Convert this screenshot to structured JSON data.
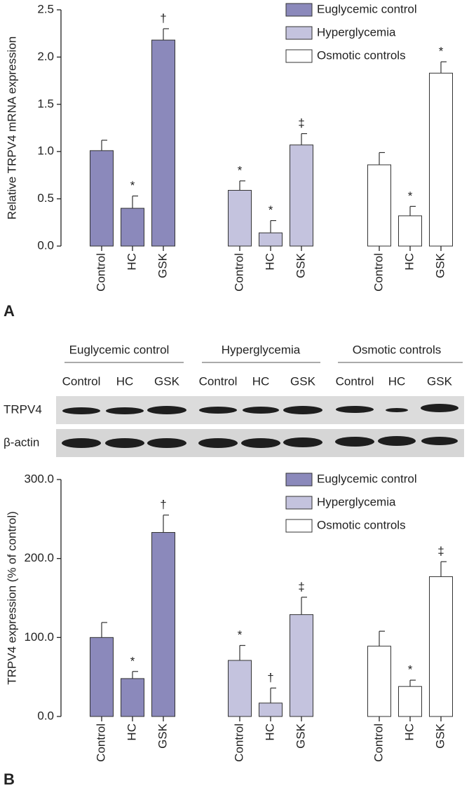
{
  "panel_labels": [
    "A",
    "B"
  ],
  "blot": {
    "groups": [
      "Euglycemic control",
      "Hyperglycemia",
      "Osmotic controls"
    ],
    "lanes": [
      "Control",
      "HC",
      "GSK"
    ],
    "rows": [
      "TRPV4",
      "β-actin"
    ]
  },
  "chart_data": [
    {
      "type": "bar",
      "y_label": "Relative TRPV4 mRNA expression",
      "categories": [
        "Control",
        "HC",
        "GSK"
      ],
      "ylim": [
        0,
        2.5
      ],
      "yticks": [
        {
          "value": 0,
          "label": "0.0"
        },
        0.5,
        {
          "value": 1,
          "label": "1.0"
        },
        1.5,
        {
          "value": 2,
          "label": "2.0"
        },
        2.5
      ],
      "series": [
        {
          "name": "Euglycemic control",
          "color": "#8b89bb",
          "values": [
            1.01,
            0.4,
            2.18
          ],
          "errors": [
            0.11,
            0.13,
            0.12
          ],
          "markers": [
            null,
            "*",
            "†"
          ]
        },
        {
          "name": "Hyperglycemia",
          "color": "#c4c3de",
          "values": [
            0.59,
            0.14,
            1.07
          ],
          "errors": [
            0.1,
            0.13,
            0.12
          ],
          "markers": [
            "*",
            "*",
            "‡"
          ]
        },
        {
          "name": "Osmotic controls",
          "color": "#ffffff",
          "values": [
            0.86,
            0.32,
            1.83
          ],
          "errors": [
            0.13,
            0.1,
            0.12
          ],
          "markers": [
            null,
            "*",
            "*"
          ]
        }
      ]
    },
    {
      "type": "bar",
      "y_label": "TRPV4 expression (% of control)",
      "categories": [
        "Control",
        "HC",
        "GSK"
      ],
      "ylim": [
        0,
        300
      ],
      "yticks": [
        {
          "value": 0,
          "label": "0.0"
        },
        {
          "value": 100,
          "label": "100.0"
        },
        {
          "value": 200,
          "label": "200.0"
        },
        {
          "value": 300,
          "label": "300.0"
        }
      ],
      "series": [
        {
          "name": "Euglycemic control",
          "color": "#8b89bb",
          "values": [
            100,
            48,
            233
          ],
          "errors": [
            19,
            9,
            22
          ],
          "markers": [
            null,
            "*",
            "†"
          ]
        },
        {
          "name": "Hyperglycemia",
          "color": "#c4c3de",
          "values": [
            71,
            17,
            129
          ],
          "errors": [
            19,
            19,
            22
          ],
          "markers": [
            "*",
            "†",
            "‡"
          ]
        },
        {
          "name": "Osmotic controls",
          "color": "#ffffff",
          "values": [
            89,
            38,
            177
          ],
          "errors": [
            19,
            8,
            19
          ],
          "markers": [
            null,
            "*",
            "‡"
          ]
        }
      ]
    }
  ]
}
